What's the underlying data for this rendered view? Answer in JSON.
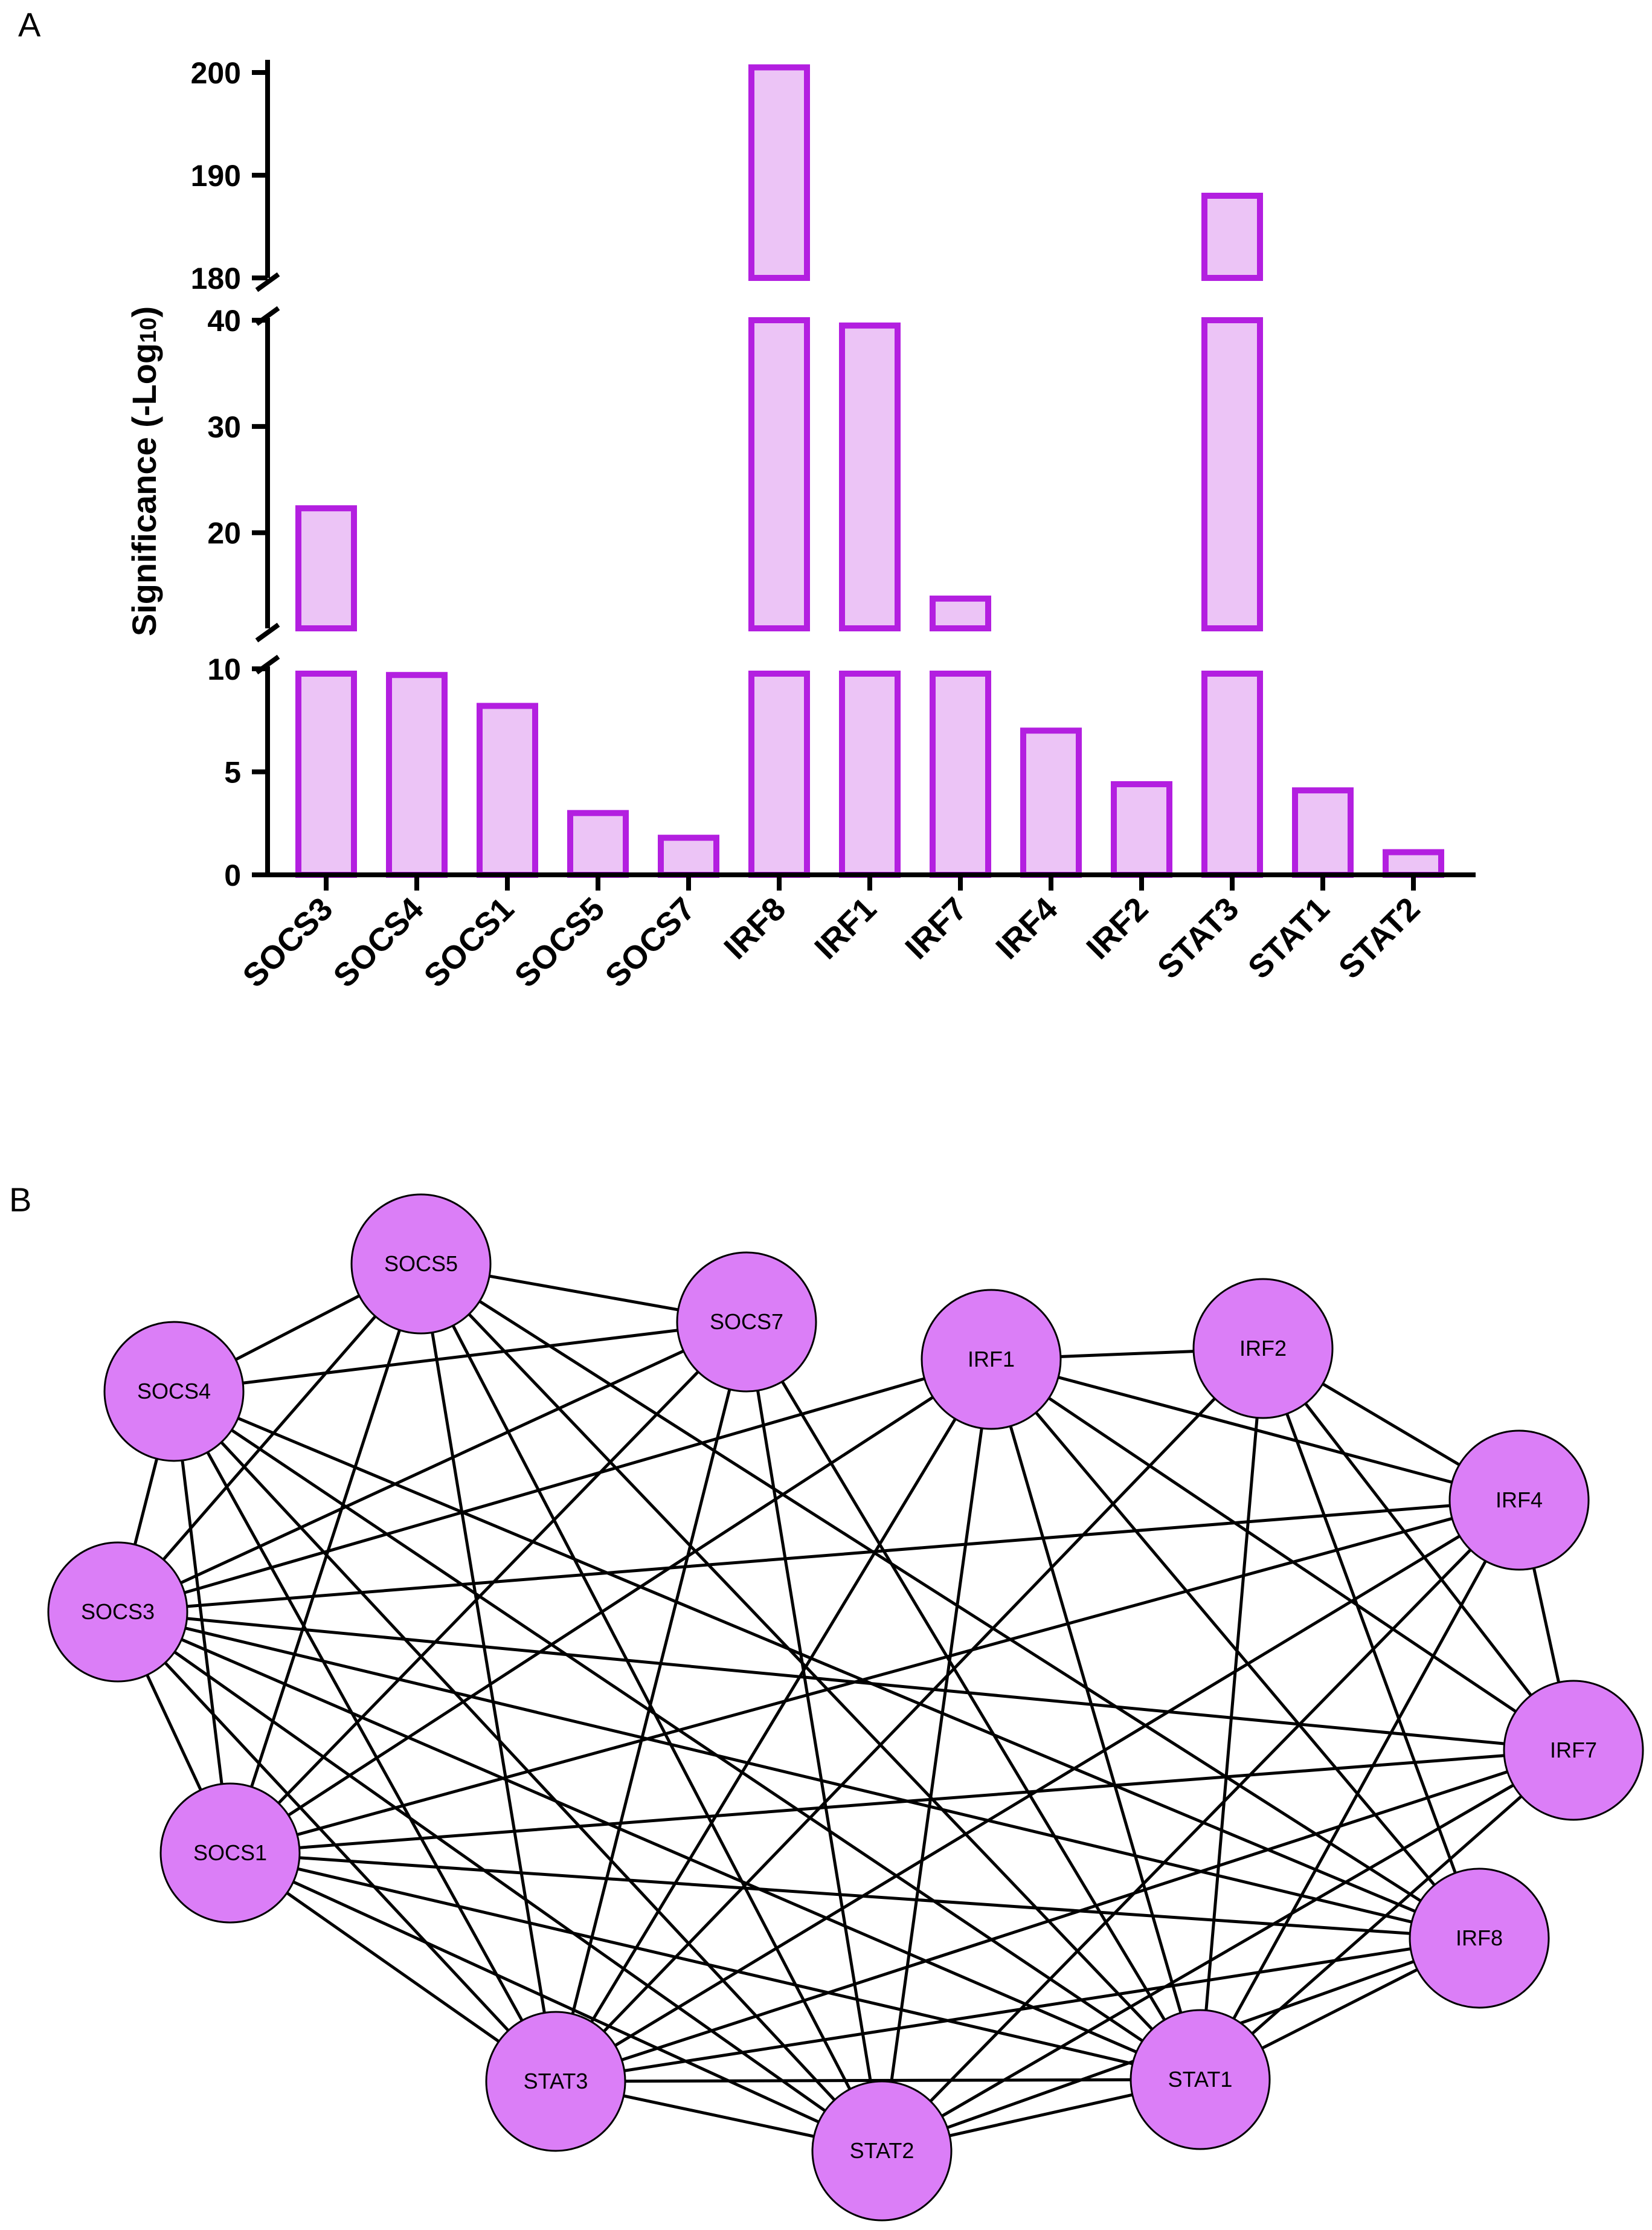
{
  "panels": {
    "a": "A",
    "b": "B"
  },
  "chart_data": {
    "type": "bar",
    "title": "",
    "xlabel": "",
    "ylabel": "Significance (-Log",
    "ylabel_sub": "10",
    "ylabel_close": ")",
    "y_axis_break": true,
    "segments": [
      {
        "range": [
          0,
          10
        ],
        "ticks": [
          0,
          5,
          10
        ]
      },
      {
        "range": [
          11,
          40
        ],
        "ticks": [
          20,
          30,
          40
        ]
      },
      {
        "range": [
          180,
          201
        ],
        "ticks": [
          180,
          190,
          200
        ]
      }
    ],
    "categories": [
      "SOCS3",
      "SOCS4",
      "SOCS1",
      "SOCS5",
      "SOCS7",
      "IRF8",
      "IRF1",
      "IRF7",
      "IRF4",
      "IRF2",
      "STAT3",
      "STAT1",
      "STAT2"
    ],
    "values": [
      22.3,
      9.7,
      8.2,
      3.0,
      1.8,
      200.5,
      39.5,
      13.8,
      7.0,
      4.4,
      188,
      4.1,
      1.1
    ],
    "colors": {
      "bar_fill": "#ecc4f6",
      "bar_edge": "#b31fe0"
    }
  },
  "network": {
    "node_color": "#db7ef7",
    "nodes": [
      "SOCS5",
      "SOCS7",
      "SOCS4",
      "IRF1",
      "IRF2",
      "IRF4",
      "SOCS3",
      "IRF7",
      "SOCS1",
      "IRF8",
      "STAT3",
      "STAT1",
      "STAT2"
    ],
    "edges": [
      [
        "SOCS5",
        "SOCS7"
      ],
      [
        "SOCS5",
        "SOCS4"
      ],
      [
        "SOCS5",
        "SOCS3"
      ],
      [
        "SOCS5",
        "SOCS1"
      ],
      [
        "SOCS5",
        "STAT3"
      ],
      [
        "SOCS5",
        "STAT2"
      ],
      [
        "SOCS5",
        "STAT1"
      ],
      [
        "SOCS5",
        "IRF8"
      ],
      [
        "SOCS7",
        "SOCS4"
      ],
      [
        "SOCS7",
        "SOCS3"
      ],
      [
        "SOCS7",
        "SOCS1"
      ],
      [
        "SOCS7",
        "STAT3"
      ],
      [
        "SOCS7",
        "STAT2"
      ],
      [
        "SOCS7",
        "STAT1"
      ],
      [
        "SOCS4",
        "SOCS3"
      ],
      [
        "SOCS4",
        "SOCS1"
      ],
      [
        "SOCS4",
        "STAT3"
      ],
      [
        "SOCS4",
        "STAT2"
      ],
      [
        "SOCS4",
        "STAT1"
      ],
      [
        "SOCS4",
        "IRF8"
      ],
      [
        "IRF1",
        "IRF2"
      ],
      [
        "IRF1",
        "IRF4"
      ],
      [
        "IRF1",
        "IRF7"
      ],
      [
        "IRF1",
        "IRF8"
      ],
      [
        "IRF1",
        "SOCS3"
      ],
      [
        "IRF1",
        "SOCS1"
      ],
      [
        "IRF1",
        "STAT3"
      ],
      [
        "IRF1",
        "STAT2"
      ],
      [
        "IRF1",
        "STAT1"
      ],
      [
        "IRF2",
        "IRF4"
      ],
      [
        "IRF2",
        "IRF7"
      ],
      [
        "IRF2",
        "IRF8"
      ],
      [
        "IRF2",
        "STAT3"
      ],
      [
        "IRF2",
        "STAT1"
      ],
      [
        "IRF4",
        "IRF7"
      ],
      [
        "IRF4",
        "SOCS3"
      ],
      [
        "IRF4",
        "SOCS1"
      ],
      [
        "IRF4",
        "STAT3"
      ],
      [
        "IRF4",
        "STAT2"
      ],
      [
        "IRF4",
        "STAT1"
      ],
      [
        "SOCS3",
        "IRF7"
      ],
      [
        "SOCS3",
        "IRF8"
      ],
      [
        "SOCS3",
        "SOCS1"
      ],
      [
        "SOCS3",
        "STAT3"
      ],
      [
        "SOCS3",
        "STAT2"
      ],
      [
        "SOCS3",
        "STAT1"
      ],
      [
        "IRF7",
        "SOCS1"
      ],
      [
        "IRF7",
        "STAT3"
      ],
      [
        "IRF7",
        "STAT2"
      ],
      [
        "IRF7",
        "STAT1"
      ],
      [
        "SOCS1",
        "IRF8"
      ],
      [
        "SOCS1",
        "STAT3"
      ],
      [
        "SOCS1",
        "STAT2"
      ],
      [
        "SOCS1",
        "STAT1"
      ],
      [
        "IRF8",
        "STAT3"
      ],
      [
        "IRF8",
        "STAT2"
      ],
      [
        "IRF8",
        "STAT1"
      ],
      [
        "STAT3",
        "STAT2"
      ],
      [
        "STAT3",
        "STAT1"
      ],
      [
        "STAT2",
        "STAT1"
      ]
    ]
  }
}
